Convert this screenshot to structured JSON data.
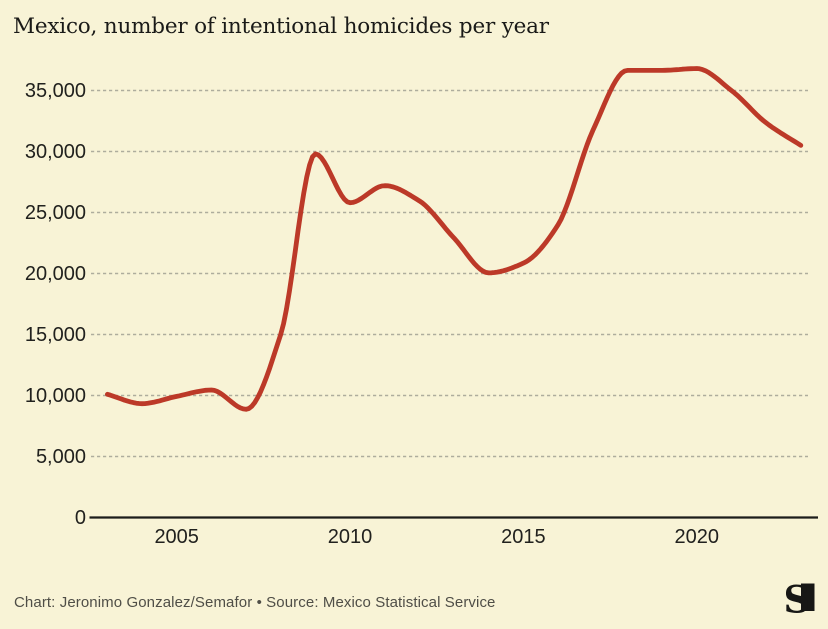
{
  "header": {
    "title": "Mexico, number of intentional homicides per year"
  },
  "chart_data": {
    "type": "line",
    "title": "Mexico, number of intentional homicides per year",
    "series_name": "Intentional homicides per year",
    "x": [
      2003,
      2004,
      2005,
      2006,
      2007,
      2008,
      2009,
      2010,
      2011,
      2012,
      2013,
      2014,
      2015,
      2016,
      2017,
      2018,
      2019,
      2020,
      2021,
      2022,
      2023
    ],
    "values": [
      10100,
      9330,
      9930,
      10450,
      8870,
      15000,
      29800,
      25800,
      27200,
      25950,
      22900,
      20050,
      20850,
      24000,
      31700,
      36650,
      36650,
      36800,
      35000,
      32350,
      30500
    ],
    "xlabel": "",
    "ylabel": "",
    "xlim": [
      2003,
      2023
    ],
    "ylim": [
      0,
      38000
    ],
    "xticks": [
      {
        "value": 2005,
        "label": "2005"
      },
      {
        "value": 2010,
        "label": "2010"
      },
      {
        "value": 2015,
        "label": "2015"
      },
      {
        "value": 2020,
        "label": "2020"
      }
    ],
    "yticks": [
      {
        "value": 0,
        "label": "0"
      },
      {
        "value": 5000,
        "label": "5,000"
      },
      {
        "value": 10000,
        "label": "10,000"
      },
      {
        "value": 15000,
        "label": "15,000"
      },
      {
        "value": 20000,
        "label": "20,000"
      },
      {
        "value": 25000,
        "label": "25,000"
      },
      {
        "value": 30000,
        "label": "30,000"
      },
      {
        "value": 35000,
        "label": "35,000"
      }
    ],
    "grid": "horizontal-dashed",
    "legend_position": "none",
    "line_color": "#bc3928",
    "grid_color": "#aead9d",
    "axis_color": "#1c1c1a",
    "background_color": "#f8f3d6"
  },
  "footer": {
    "credit_line": "Chart: Jeronimo Gonzalez/Semafor • Source: Mexico Statistical Service",
    "logo_icon": "semafor-logo"
  }
}
